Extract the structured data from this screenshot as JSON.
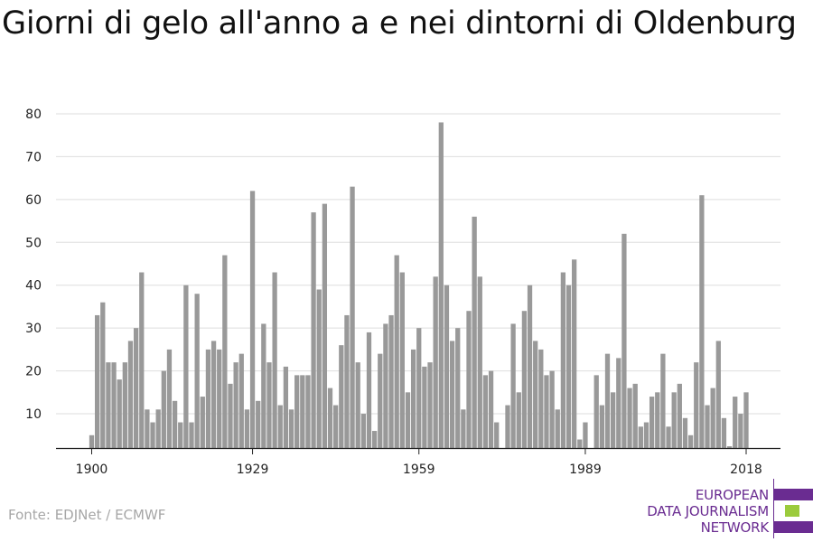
{
  "title": "Giorni di gelo all'anno a e nei dintorni di Oldenburg",
  "source": "Fonte: EDJNet / ECMWF",
  "logo": {
    "line1": "EUROPEAN",
    "line2": "DATA JOURNALISM",
    "line3": "NETWORK",
    "text_color": "#6a2c91",
    "bar_purple": "#6a2c91",
    "bar_green": "#9bcb3c"
  },
  "colors": {
    "bar": "#999999",
    "grid": "#dddddd",
    "axis": "#222222"
  },
  "chart_data": {
    "type": "bar",
    "title": "Giorni di gelo all'anno a e nei dintorni di Oldenburg",
    "xlabel": "",
    "ylabel": "",
    "ylim": [
      0,
      80
    ],
    "yticks": [
      10,
      20,
      30,
      40,
      50,
      60,
      70,
      80
    ],
    "xticks": [
      1900,
      1929,
      1959,
      1989,
      2018
    ],
    "grid": true,
    "legend": "none",
    "x": [
      1900,
      1901,
      1902,
      1903,
      1904,
      1905,
      1906,
      1907,
      1908,
      1909,
      1910,
      1911,
      1912,
      1913,
      1914,
      1915,
      1916,
      1917,
      1918,
      1919,
      1920,
      1921,
      1922,
      1923,
      1924,
      1925,
      1926,
      1927,
      1928,
      1929,
      1930,
      1931,
      1932,
      1933,
      1934,
      1935,
      1936,
      1937,
      1938,
      1939,
      1940,
      1941,
      1942,
      1943,
      1944,
      1945,
      1946,
      1947,
      1948,
      1949,
      1950,
      1951,
      1952,
      1953,
      1954,
      1955,
      1956,
      1957,
      1958,
      1959,
      1960,
      1961,
      1962,
      1963,
      1964,
      1965,
      1966,
      1967,
      1968,
      1969,
      1970,
      1971,
      1972,
      1973,
      1974,
      1975,
      1976,
      1977,
      1978,
      1979,
      1980,
      1981,
      1982,
      1983,
      1984,
      1985,
      1986,
      1987,
      1988,
      1989,
      1990,
      1991,
      1992,
      1993,
      1994,
      1995,
      1996,
      1997,
      1998,
      1999,
      2000,
      2001,
      2002,
      2003,
      2004,
      2005,
      2006,
      2007,
      2008,
      2009,
      2010,
      2011,
      2012,
      2013,
      2014,
      2015,
      2016,
      2017,
      2018
    ],
    "values": [
      5,
      33,
      36,
      22,
      22,
      18,
      22,
      27,
      30,
      43,
      11,
      8,
      11,
      20,
      25,
      13,
      8,
      40,
      8,
      38,
      14,
      25,
      27,
      25,
      47,
      17,
      22,
      24,
      11,
      62,
      13,
      31,
      22,
      43,
      12,
      21,
      11,
      19,
      19,
      19,
      57,
      39,
      59,
      16,
      12,
      26,
      33,
      63,
      22,
      10,
      29,
      6,
      24,
      31,
      33,
      47,
      43,
      15,
      25,
      30,
      21,
      22,
      42,
      78,
      40,
      27,
      30,
      11,
      34,
      56,
      42,
      19,
      20,
      8,
      0,
      12,
      31,
      15,
      34,
      40,
      27,
      25,
      19,
      20,
      11,
      43,
      40,
      46,
      4,
      8,
      0,
      19,
      12,
      24,
      15,
      23,
      52,
      16,
      17,
      7,
      8,
      14,
      15,
      24,
      7,
      15,
      17,
      9,
      5,
      22,
      61,
      12,
      16,
      27,
      9,
      2,
      14,
      10,
      15
    ]
  }
}
